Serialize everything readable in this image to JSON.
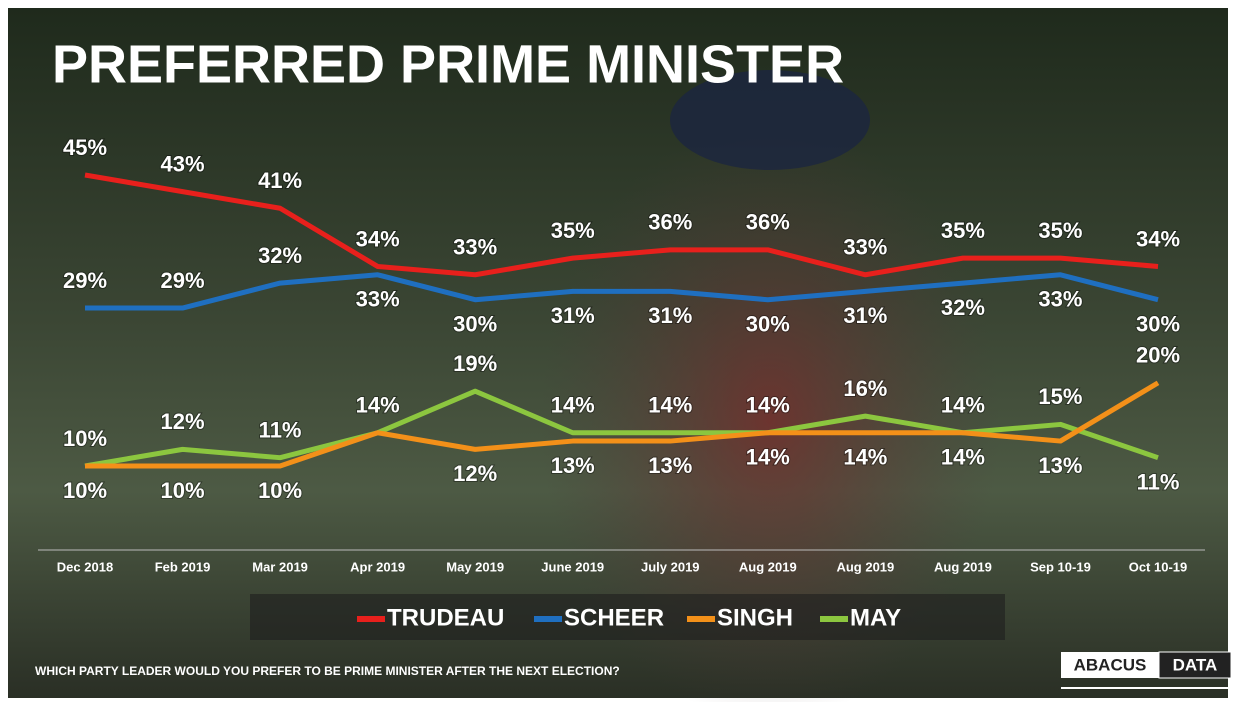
{
  "chart_data": {
    "type": "line",
    "title": "PREFERRED PRIME MINISTER",
    "categories": [
      "Dec 2018",
      "Feb 2019",
      "Mar 2019",
      "Apr 2019",
      "May 2019",
      "June 2019",
      "July 2019",
      "Aug 2019",
      "Aug 2019",
      "Aug 2019",
      "Sep 10-19",
      "Oct 10-19"
    ],
    "series": [
      {
        "name": "TRUDEAU",
        "color": "#e8201c",
        "values": [
          45,
          43,
          41,
          34,
          33,
          35,
          36,
          36,
          33,
          35,
          35,
          34
        ],
        "value_labels": [
          "45%",
          "43%",
          "41%",
          "34%",
          "33%",
          "35%",
          "36%",
          "36%",
          "33%",
          "35%",
          "35%",
          "34%"
        ]
      },
      {
        "name": "SCHEER",
        "color": "#1f6fc0",
        "values": [
          29,
          29,
          32,
          33,
          30,
          31,
          31,
          30,
          31,
          32,
          33,
          30
        ],
        "value_labels": [
          "29%",
          "29%",
          "32%",
          "33%",
          "30%",
          "31%",
          "31%",
          "30%",
          "31%",
          "32%",
          "33%",
          "30%"
        ]
      },
      {
        "name": "SINGH",
        "color": "#f39019",
        "values": [
          10,
          10,
          10,
          14,
          12,
          13,
          13,
          14,
          14,
          14,
          13,
          20
        ],
        "value_labels": [
          "10%",
          "10%",
          "10%",
          null,
          "12%",
          "13%",
          "13%",
          "14%",
          "14%",
          "14%",
          "13%",
          "20%"
        ]
      },
      {
        "name": "MAY",
        "color": "#8cc63f",
        "values": [
          10,
          12,
          11,
          14,
          19,
          14,
          14,
          14,
          16,
          14,
          15,
          11
        ],
        "value_labels": [
          "10%",
          "12%",
          "11%",
          "14%",
          "19%",
          "14%",
          "14%",
          "14%",
          "16%",
          "14%",
          "15%",
          "11%"
        ]
      }
    ],
    "footnote": "WHICH PARTY LEADER WOULD YOU PREFER TO BE PRIME MINISTER AFTER THE NEXT ELECTION?",
    "logo": {
      "left": "ABACUS",
      "right": "DATA"
    }
  }
}
